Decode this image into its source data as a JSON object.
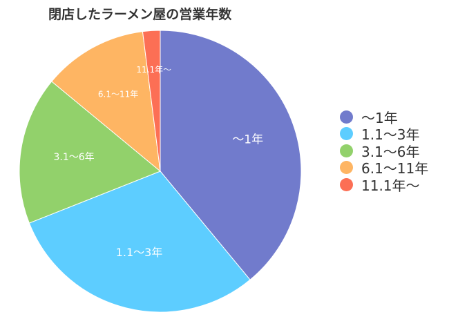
{
  "chart_data": {
    "type": "pie",
    "title": "閉店したラーメン屋の営業年数",
    "slices": [
      {
        "label": "〜1年",
        "value": 39,
        "color": "#717bcc"
      },
      {
        "label": "1.1〜3年",
        "value": 30,
        "color": "#5dcdff"
      },
      {
        "label": "3.1〜6年",
        "value": 17,
        "color": "#92d16b"
      },
      {
        "label": "6.1〜11年",
        "value": 12,
        "color": "#feb563"
      },
      {
        "label": "11.1年〜",
        "value": 2,
        "color": "#fc6f55"
      }
    ],
    "legend_position": "right",
    "start_angle": "12-o'clock",
    "direction": "clockwise"
  }
}
